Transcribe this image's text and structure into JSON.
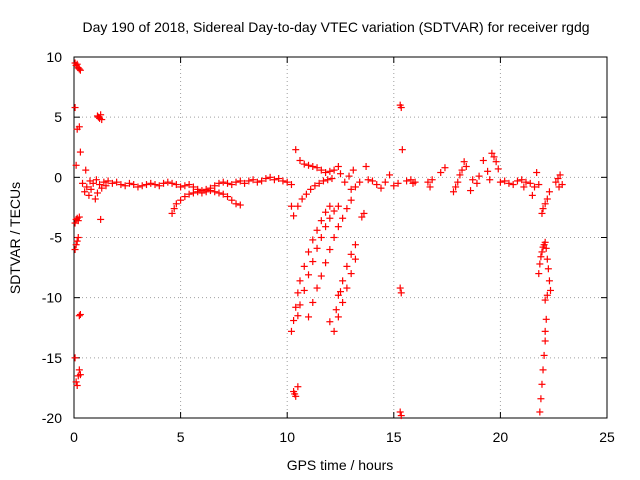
{
  "chart_data": {
    "type": "scatter",
    "title": "Day 190 of 2018, Sidereal Day-to-day VTEC variation (SDTVAR) for receiver rgdg",
    "xlabel": "GPS time / hours",
    "ylabel": "SDTVAR / TECUs",
    "xlim": [
      0,
      25
    ],
    "ylim": [
      -20,
      10
    ],
    "xticks": [
      "0",
      "5",
      "10",
      "15",
      "20",
      "25"
    ],
    "yticks": [
      "10",
      "5",
      "0",
      "-5",
      "-10",
      "-15",
      "-20"
    ],
    "grid": true,
    "marker": "+",
    "color": "#ff0000",
    "series": [
      {
        "name": "SDTVAR",
        "points": [
          [
            0.05,
            9.5
          ],
          [
            0.1,
            9.3
          ],
          [
            0.15,
            9.4
          ],
          [
            0.2,
            9.1
          ],
          [
            0.25,
            9.0
          ],
          [
            0.3,
            8.9
          ],
          [
            0.05,
            5.8
          ],
          [
            0.1,
            1.0
          ],
          [
            0.15,
            4.0
          ],
          [
            0.25,
            4.2
          ],
          [
            0.3,
            2.1
          ],
          [
            0.05,
            -3.8
          ],
          [
            0.1,
            -3.5
          ],
          [
            0.15,
            -3.4
          ],
          [
            0.2,
            -3.6
          ],
          [
            0.25,
            -3.3
          ],
          [
            0.05,
            -6.0
          ],
          [
            0.1,
            -5.6
          ],
          [
            0.15,
            -5.3
          ],
          [
            0.2,
            -5.0
          ],
          [
            0.25,
            -11.5
          ],
          [
            0.3,
            -11.4
          ],
          [
            0.05,
            -15.0
          ],
          [
            0.1,
            -17.0
          ],
          [
            0.15,
            -17.3
          ],
          [
            0.2,
            -16.5
          ],
          [
            0.25,
            -16.0
          ],
          [
            0.3,
            -16.4
          ],
          [
            0.4,
            -0.5
          ],
          [
            0.5,
            -1.2
          ],
          [
            0.55,
            0.6
          ],
          [
            0.6,
            -0.8
          ],
          [
            0.7,
            -1.5
          ],
          [
            0.75,
            -0.3
          ],
          [
            0.8,
            -1.0
          ],
          [
            0.9,
            -0.5
          ],
          [
            1.0,
            -1.8
          ],
          [
            1.05,
            -0.2
          ],
          [
            1.1,
            -1.3
          ],
          [
            1.2,
            -0.6
          ],
          [
            1.25,
            -3.5
          ],
          [
            1.3,
            -0.9
          ],
          [
            1.4,
            -0.4
          ],
          [
            1.5,
            -0.7
          ],
          [
            1.1,
            5.1
          ],
          [
            1.15,
            5.0
          ],
          [
            1.2,
            4.9
          ],
          [
            1.25,
            5.2
          ],
          [
            1.3,
            4.8
          ],
          [
            1.6,
            -0.3
          ],
          [
            1.8,
            -0.5
          ],
          [
            2.0,
            -0.4
          ],
          [
            2.2,
            -0.6
          ],
          [
            2.4,
            -0.7
          ],
          [
            2.6,
            -0.5
          ],
          [
            2.8,
            -0.6
          ],
          [
            3.0,
            -0.8
          ],
          [
            3.2,
            -0.7
          ],
          [
            3.4,
            -0.6
          ],
          [
            3.6,
            -0.5
          ],
          [
            3.8,
            -0.6
          ],
          [
            4.0,
            -0.7
          ],
          [
            4.2,
            -0.5
          ],
          [
            4.4,
            -0.4
          ],
          [
            4.6,
            -0.5
          ],
          [
            4.8,
            -0.6
          ],
          [
            5.0,
            -0.8
          ],
          [
            5.2,
            -0.7
          ],
          [
            5.4,
            -0.6
          ],
          [
            5.6,
            -0.8
          ],
          [
            5.8,
            -1.0
          ],
          [
            6.0,
            -1.1
          ],
          [
            6.2,
            -1.0
          ],
          [
            6.4,
            -0.9
          ],
          [
            6.6,
            -0.7
          ],
          [
            6.8,
            -0.5
          ],
          [
            7.0,
            -0.4
          ],
          [
            7.2,
            -0.5
          ],
          [
            7.4,
            -0.6
          ],
          [
            7.6,
            -0.4
          ],
          [
            7.8,
            -0.3
          ],
          [
            8.0,
            -0.5
          ],
          [
            8.2,
            -0.3
          ],
          [
            8.4,
            -0.2
          ],
          [
            8.6,
            -0.4
          ],
          [
            8.8,
            -0.3
          ],
          [
            9.0,
            -0.1
          ],
          [
            9.2,
            0.0
          ],
          [
            9.4,
            -0.2
          ],
          [
            9.6,
            -0.1
          ],
          [
            9.8,
            -0.3
          ],
          [
            10.0,
            -0.4
          ],
          [
            10.2,
            -0.6
          ],
          [
            4.6,
            -3.0
          ],
          [
            4.7,
            -2.6
          ],
          [
            4.8,
            -2.2
          ],
          [
            5.0,
            -1.9
          ],
          [
            5.2,
            -1.6
          ],
          [
            5.4,
            -1.4
          ],
          [
            5.6,
            -1.3
          ],
          [
            5.8,
            -1.2
          ],
          [
            6.0,
            -1.3
          ],
          [
            6.2,
            -1.2
          ],
          [
            6.4,
            -1.1
          ],
          [
            6.6,
            -1.2
          ],
          [
            6.8,
            -1.3
          ],
          [
            7.0,
            -1.4
          ],
          [
            7.2,
            -1.6
          ],
          [
            7.4,
            -1.9
          ],
          [
            7.6,
            -2.2
          ],
          [
            7.8,
            -2.3
          ],
          [
            10.4,
            2.3
          ],
          [
            10.6,
            1.4
          ],
          [
            10.8,
            1.1
          ],
          [
            11.0,
            1.0
          ],
          [
            11.2,
            0.9
          ],
          [
            11.4,
            0.8
          ],
          [
            11.6,
            0.6
          ],
          [
            11.8,
            0.4
          ],
          [
            12.0,
            0.5
          ],
          [
            12.2,
            0.6
          ],
          [
            12.4,
            0.9
          ],
          [
            12.5,
            0.3
          ],
          [
            12.7,
            -0.4
          ],
          [
            12.9,
            0.1
          ],
          [
            10.2,
            -2.4
          ],
          [
            10.3,
            -3.2
          ],
          [
            10.5,
            -2.4
          ],
          [
            10.7,
            -1.8
          ],
          [
            10.9,
            -1.4
          ],
          [
            11.1,
            -1.0
          ],
          [
            11.3,
            -0.7
          ],
          [
            11.5,
            -0.5
          ],
          [
            11.7,
            -0.3
          ],
          [
            11.9,
            -0.2
          ],
          [
            12.1,
            -0.1
          ],
          [
            10.2,
            -12.8
          ],
          [
            10.3,
            -11.9
          ],
          [
            10.4,
            -10.8
          ],
          [
            10.5,
            -9.6
          ],
          [
            10.6,
            -8.6
          ],
          [
            10.8,
            -7.4
          ],
          [
            11.0,
            -6.2
          ],
          [
            11.2,
            -5.2
          ],
          [
            11.4,
            -4.4
          ],
          [
            11.6,
            -3.6
          ],
          [
            11.8,
            -2.9
          ],
          [
            12.0,
            -2.4
          ],
          [
            10.5,
            -11.5
          ],
          [
            10.6,
            -10.6
          ],
          [
            10.8,
            -9.4
          ],
          [
            11.0,
            -8.1
          ],
          [
            11.2,
            -7.0
          ],
          [
            11.4,
            -5.9
          ],
          [
            11.6,
            -5.0
          ],
          [
            11.8,
            -4.1
          ],
          [
            12.0,
            -3.4
          ],
          [
            12.2,
            -2.8
          ],
          [
            12.4,
            -2.4
          ],
          [
            11.0,
            -11.6
          ],
          [
            11.2,
            -10.4
          ],
          [
            11.4,
            -9.2
          ],
          [
            11.6,
            -8.2
          ],
          [
            11.8,
            -7.1
          ],
          [
            12.0,
            -6.0
          ],
          [
            12.2,
            -5.0
          ],
          [
            12.4,
            -4.1
          ],
          [
            12.6,
            -3.4
          ],
          [
            12.8,
            -2.6
          ],
          [
            13.0,
            -1.9
          ],
          [
            12.2,
            -12.8
          ],
          [
            12.4,
            -11.6
          ],
          [
            12.6,
            -10.4
          ],
          [
            12.8,
            -9.2
          ],
          [
            13.0,
            -8.0
          ],
          [
            13.2,
            -6.8
          ],
          [
            12.4,
            -9.8
          ],
          [
            12.6,
            -8.6
          ],
          [
            12.8,
            -7.4
          ],
          [
            13.0,
            -6.4
          ],
          [
            13.2,
            -5.6
          ],
          [
            12.0,
            -12.0
          ],
          [
            12.3,
            -11.0
          ],
          [
            12.5,
            -9.5
          ],
          [
            13.0,
            -1.0
          ],
          [
            13.1,
            0.6
          ],
          [
            13.2,
            -0.8
          ],
          [
            13.4,
            -0.4
          ],
          [
            13.5,
            -3.3
          ],
          [
            13.6,
            -3.0
          ],
          [
            13.7,
            0.9
          ],
          [
            13.8,
            -0.2
          ],
          [
            14.0,
            -0.3
          ],
          [
            14.2,
            -0.6
          ],
          [
            14.4,
            -0.9
          ],
          [
            14.6,
            -0.4
          ],
          [
            14.8,
            0.2
          ],
          [
            15.0,
            -0.7
          ],
          [
            15.2,
            -0.5
          ],
          [
            10.3,
            -17.8
          ],
          [
            10.4,
            -18.2
          ],
          [
            10.5,
            -17.4
          ],
          [
            10.35,
            -18.0
          ],
          [
            15.3,
            6.0
          ],
          [
            15.35,
            5.8
          ],
          [
            15.4,
            2.3
          ],
          [
            15.3,
            -9.2
          ],
          [
            15.35,
            -9.6
          ],
          [
            15.3,
            -19.5
          ],
          [
            15.35,
            -19.8
          ],
          [
            15.6,
            -0.3
          ],
          [
            15.8,
            -0.2
          ],
          [
            15.9,
            -0.5
          ],
          [
            16.0,
            -0.4
          ],
          [
            16.6,
            -0.4
          ],
          [
            16.7,
            -0.8
          ],
          [
            16.8,
            -0.2
          ],
          [
            17.2,
            0.4
          ],
          [
            17.4,
            0.8
          ],
          [
            17.8,
            -1.2
          ],
          [
            17.9,
            -0.8
          ],
          [
            18.0,
            -0.4
          ],
          [
            18.1,
            0.2
          ],
          [
            18.2,
            0.6
          ],
          [
            18.3,
            1.3
          ],
          [
            18.4,
            0.9
          ],
          [
            18.6,
            -1.1
          ],
          [
            18.7,
            -0.2
          ],
          [
            18.9,
            -0.5
          ],
          [
            19.0,
            0.1
          ],
          [
            19.2,
            1.4
          ],
          [
            19.4,
            0.5
          ],
          [
            19.5,
            -0.2
          ],
          [
            19.6,
            2.0
          ],
          [
            19.7,
            1.7
          ],
          [
            19.8,
            1.3
          ],
          [
            19.9,
            0.7
          ],
          [
            20.0,
            -0.4
          ],
          [
            20.2,
            -0.3
          ],
          [
            20.4,
            -0.5
          ],
          [
            20.6,
            -0.6
          ],
          [
            20.8,
            -0.3
          ],
          [
            21.0,
            -0.2
          ],
          [
            21.1,
            -0.8
          ],
          [
            21.2,
            -0.4
          ],
          [
            21.4,
            -0.5
          ],
          [
            21.5,
            -1.5
          ],
          [
            21.6,
            -0.8
          ],
          [
            21.7,
            0.4
          ],
          [
            21.8,
            -0.6
          ],
          [
            21.85,
            -19.5
          ],
          [
            21.9,
            -18.4
          ],
          [
            21.95,
            -17.2
          ],
          [
            22.0,
            -16.0
          ],
          [
            22.05,
            -14.8
          ],
          [
            22.1,
            -13.6
          ],
          [
            22.1,
            -12.8
          ],
          [
            22.15,
            -11.8
          ],
          [
            21.8,
            -8.0
          ],
          [
            21.85,
            -7.2
          ],
          [
            21.9,
            -6.6
          ],
          [
            21.95,
            -6.2
          ],
          [
            22.0,
            -5.8
          ],
          [
            22.05,
            -5.6
          ],
          [
            22.1,
            -5.4
          ],
          [
            22.15,
            -5.9
          ],
          [
            22.2,
            -6.8
          ],
          [
            22.25,
            -7.6
          ],
          [
            22.3,
            -8.6
          ],
          [
            22.35,
            -9.4
          ],
          [
            22.2,
            -9.8
          ],
          [
            22.1,
            -10.2
          ],
          [
            21.95,
            -3.0
          ],
          [
            22.0,
            -2.6
          ],
          [
            22.1,
            -2.2
          ],
          [
            22.2,
            -1.8
          ],
          [
            22.3,
            -1.2
          ],
          [
            22.6,
            -0.4
          ],
          [
            22.7,
            -0.1
          ],
          [
            22.8,
            0.2
          ],
          [
            22.9,
            -0.6
          ],
          [
            22.75,
            -0.8
          ]
        ]
      }
    ]
  }
}
